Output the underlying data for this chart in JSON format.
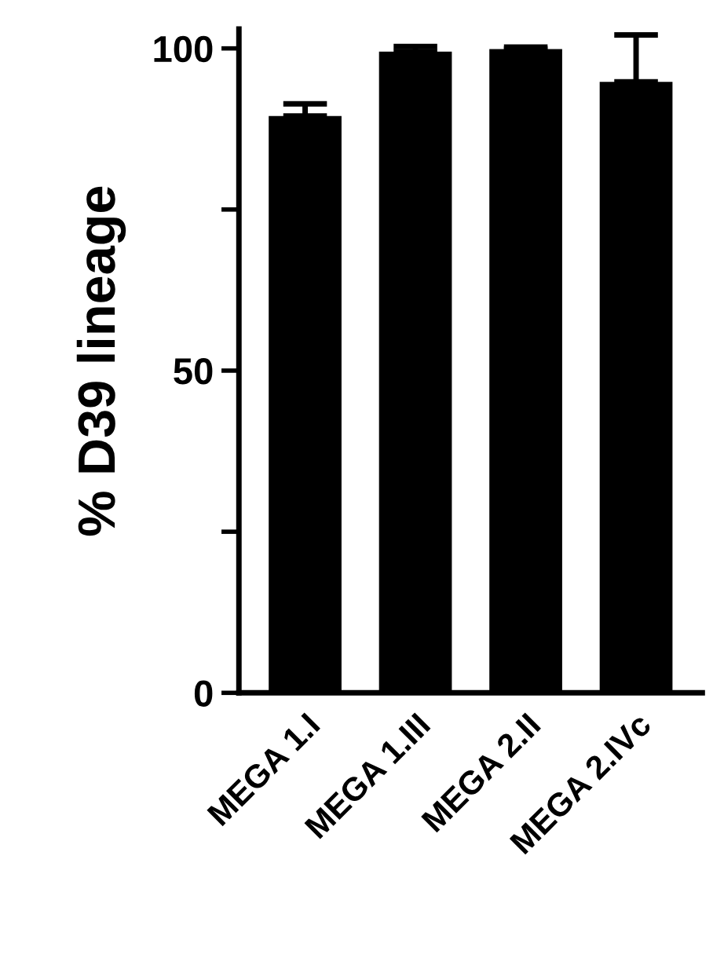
{
  "chart_data": {
    "type": "bar",
    "ylabel": "% D39 lineage",
    "categories": [
      "MEGA 1.I",
      "MEGA 1.III",
      "MEGA 2.II",
      "MEGA 2.IVc"
    ],
    "values": [
      89.5,
      99.5,
      99.9,
      94.8
    ],
    "errors": [
      [
        89.5,
        91.4
      ],
      [
        99.5,
        100.3
      ],
      [
        99.9,
        100.2
      ],
      [
        94.8,
        102.1
      ]
    ],
    "color": "#000000",
    "ylim": [
      0,
      103
    ],
    "yticks": [
      0,
      {
        "value": 25,
        "label": null
      },
      50,
      {
        "value": 75,
        "label": null
      },
      100
    ],
    "grid": false,
    "legend": false
  }
}
